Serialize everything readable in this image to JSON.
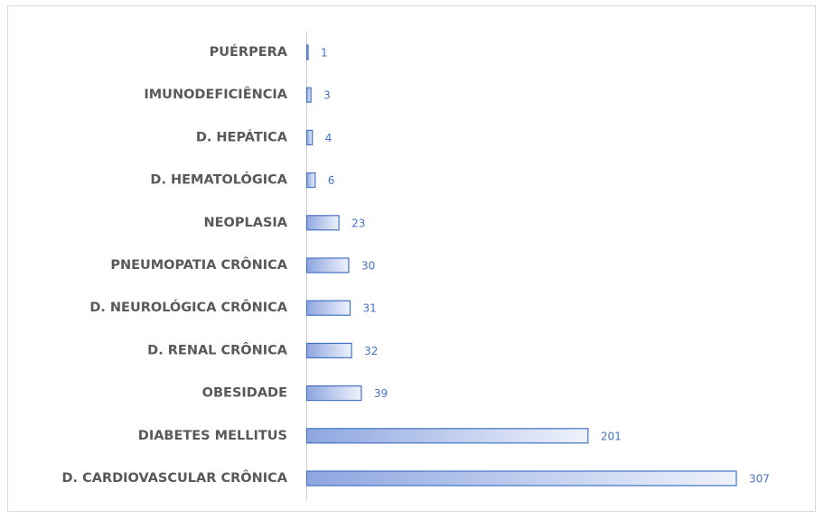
{
  "chart_data": {
    "type": "bar",
    "orientation": "horizontal",
    "categories": [
      "PUÉRPERA",
      "IMUNODEFICIÊNCIA",
      "D. HEPÁTICA",
      "D. HEMATOLÓGICA",
      "NEOPLASIA",
      "PNEUMOPATIA CRÔNICA",
      "D. NEUROLÓGICA CRÔNICA",
      "D. RENAL CRÔNICA",
      "OBESIDADE",
      "DIABETES MELLITUS",
      "D. CARDIOVASCULAR CRÔNICA"
    ],
    "values": [
      1,
      3,
      4,
      6,
      23,
      30,
      31,
      32,
      39,
      201,
      307
    ],
    "color": "#4472c4"
  }
}
